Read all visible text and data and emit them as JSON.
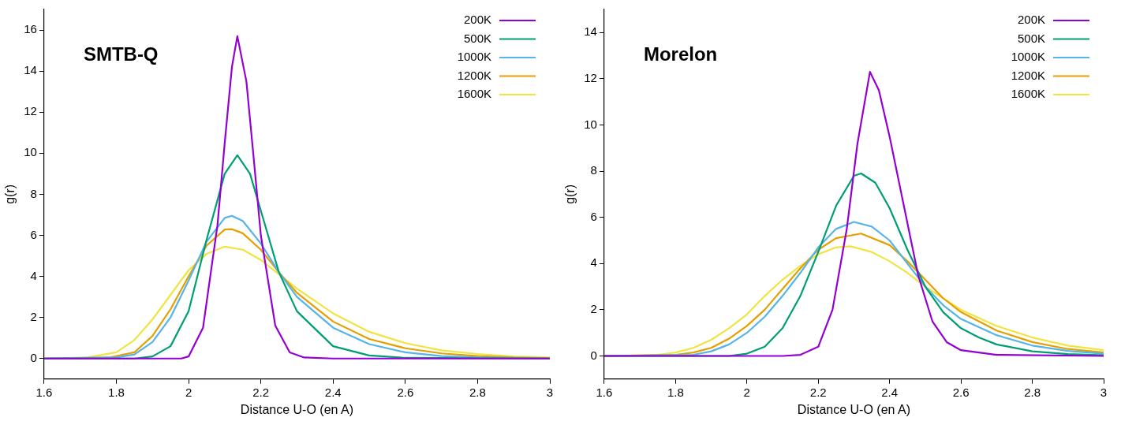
{
  "chart_data": [
    {
      "type": "line",
      "title": "SMTB-Q",
      "xlabel": "Distance U-O (en A)",
      "ylabel": "g(r)",
      "xlim": [
        1.6,
        3
      ],
      "xticks": [
        1.6,
        1.8,
        2,
        2.2,
        2.4,
        2.6,
        2.8,
        3
      ],
      "ylim": [
        -1,
        17
      ],
      "yticks": [
        0,
        2,
        4,
        6,
        8,
        10,
        12,
        14,
        16
      ],
      "grid": false,
      "legend": "top right",
      "marker": "none",
      "series": [
        {
          "name": "200K",
          "color": "#9400d3",
          "x": [
            1.6,
            1.98,
            2.0,
            2.04,
            2.08,
            2.1,
            2.12,
            2.135,
            2.16,
            2.18,
            2.2,
            2.24,
            2.28,
            2.32,
            2.4,
            3
          ],
          "values": [
            0,
            0,
            0.1,
            1.5,
            6.5,
            10.5,
            14.2,
            15.7,
            13.5,
            9.8,
            6,
            1.6,
            0.3,
            0.05,
            0,
            0
          ]
        },
        {
          "name": "500K",
          "color": "#009e73",
          "x": [
            1.6,
            1.85,
            1.9,
            1.95,
            2.0,
            2.05,
            2.1,
            2.135,
            2.17,
            2.2,
            2.25,
            2.3,
            2.4,
            2.5,
            2.6,
            3
          ],
          "values": [
            0,
            0,
            0.1,
            0.6,
            2.3,
            5.8,
            9.0,
            9.9,
            9.0,
            7.2,
            4.2,
            2.3,
            0.6,
            0.15,
            0.03,
            0
          ]
        },
        {
          "name": "1000K",
          "color": "#56b4e9",
          "x": [
            1.6,
            1.8,
            1.85,
            1.9,
            1.95,
            2.0,
            2.05,
            2.1,
            2.12,
            2.15,
            2.2,
            2.25,
            2.3,
            2.4,
            2.5,
            2.6,
            2.7,
            2.8,
            3
          ],
          "values": [
            0,
            0.05,
            0.2,
            0.8,
            2.0,
            3.8,
            5.7,
            6.85,
            6.95,
            6.7,
            5.6,
            4.2,
            3.0,
            1.5,
            0.7,
            0.3,
            0.12,
            0.05,
            0
          ]
        },
        {
          "name": "1200K",
          "color": "#e69f00",
          "x": [
            1.6,
            1.78,
            1.85,
            1.9,
            1.95,
            2.0,
            2.05,
            2.1,
            2.12,
            2.15,
            2.2,
            2.25,
            2.3,
            2.4,
            2.5,
            2.6,
            2.7,
            2.8,
            2.9,
            3
          ],
          "values": [
            0,
            0.05,
            0.3,
            1.1,
            2.4,
            4.0,
            5.5,
            6.28,
            6.3,
            6.1,
            5.3,
            4.2,
            3.2,
            1.8,
            0.95,
            0.5,
            0.25,
            0.12,
            0.05,
            0.02
          ]
        },
        {
          "name": "1600K",
          "color": "#f0e442",
          "x": [
            1.6,
            1.72,
            1.8,
            1.85,
            1.9,
            1.95,
            2.0,
            2.05,
            2.1,
            2.15,
            2.2,
            2.25,
            2.3,
            2.4,
            2.5,
            2.6,
            2.7,
            2.8,
            2.9,
            3
          ],
          "values": [
            0,
            0.05,
            0.3,
            0.9,
            1.9,
            3.1,
            4.3,
            5.1,
            5.45,
            5.3,
            4.8,
            4.1,
            3.4,
            2.2,
            1.3,
            0.75,
            0.4,
            0.22,
            0.1,
            0.05
          ]
        }
      ]
    },
    {
      "type": "line",
      "title": "Morelon",
      "xlabel": "Distance U-O (en A)",
      "ylabel": "g(r)",
      "xlim": [
        1.6,
        3
      ],
      "xticks": [
        1.6,
        1.8,
        2,
        2.2,
        2.4,
        2.6,
        2.8,
        3
      ],
      "ylim": [
        -1,
        15
      ],
      "yticks": [
        0,
        2,
        4,
        6,
        8,
        10,
        12,
        14
      ],
      "grid": false,
      "legend": "top right",
      "marker": "none",
      "series": [
        {
          "name": "200K",
          "color": "#9400d3",
          "x": [
            1.6,
            2.1,
            2.15,
            2.2,
            2.24,
            2.28,
            2.31,
            2.345,
            2.37,
            2.4,
            2.44,
            2.48,
            2.52,
            2.56,
            2.6,
            2.7,
            3
          ],
          "values": [
            0,
            0,
            0.05,
            0.4,
            2.0,
            5.5,
            9.2,
            12.3,
            11.5,
            9.5,
            6.5,
            3.5,
            1.5,
            0.6,
            0.25,
            0.05,
            0
          ]
        },
        {
          "name": "500K",
          "color": "#009e73",
          "x": [
            1.6,
            1.95,
            2.0,
            2.05,
            2.1,
            2.15,
            2.2,
            2.25,
            2.3,
            2.32,
            2.36,
            2.4,
            2.45,
            2.5,
            2.55,
            2.6,
            2.65,
            2.7,
            2.8,
            2.9,
            3
          ],
          "values": [
            0,
            0,
            0.1,
            0.4,
            1.2,
            2.6,
            4.5,
            6.5,
            7.8,
            7.9,
            7.5,
            6.4,
            4.6,
            3.0,
            1.9,
            1.2,
            0.8,
            0.5,
            0.2,
            0.08,
            0.03
          ]
        },
        {
          "name": "1000K",
          "color": "#56b4e9",
          "x": [
            1.6,
            1.85,
            1.9,
            1.95,
            2.0,
            2.05,
            2.1,
            2.15,
            2.2,
            2.25,
            2.3,
            2.35,
            2.4,
            2.45,
            2.5,
            2.55,
            2.6,
            2.7,
            2.8,
            2.9,
            3
          ],
          "values": [
            0,
            0.05,
            0.2,
            0.5,
            1.0,
            1.7,
            2.6,
            3.6,
            4.7,
            5.5,
            5.8,
            5.6,
            5.0,
            4.0,
            3.0,
            2.2,
            1.6,
            0.9,
            0.45,
            0.22,
            0.1
          ]
        },
        {
          "name": "1200K",
          "color": "#e69f00",
          "x": [
            1.6,
            1.8,
            1.85,
            1.9,
            1.95,
            2.0,
            2.05,
            2.1,
            2.15,
            2.2,
            2.25,
            2.32,
            2.4,
            2.45,
            2.5,
            2.55,
            2.6,
            2.7,
            2.8,
            2.9,
            3
          ],
          "values": [
            0,
            0.05,
            0.15,
            0.35,
            0.75,
            1.3,
            2.0,
            2.9,
            3.8,
            4.6,
            5.1,
            5.3,
            4.8,
            4.1,
            3.3,
            2.5,
            1.9,
            1.1,
            0.6,
            0.3,
            0.15
          ]
        },
        {
          "name": "1600K",
          "color": "#f0e442",
          "x": [
            1.6,
            1.75,
            1.8,
            1.85,
            1.9,
            1.95,
            2.0,
            2.05,
            2.1,
            2.15,
            2.2,
            2.25,
            2.29,
            2.35,
            2.4,
            2.45,
            2.5,
            2.55,
            2.6,
            2.7,
            2.8,
            2.9,
            3
          ],
          "values": [
            0,
            0.05,
            0.15,
            0.35,
            0.7,
            1.2,
            1.8,
            2.6,
            3.3,
            3.9,
            4.4,
            4.7,
            4.75,
            4.5,
            4.1,
            3.6,
            3.0,
            2.5,
            2.0,
            1.3,
            0.8,
            0.45,
            0.25
          ]
        }
      ]
    }
  ]
}
